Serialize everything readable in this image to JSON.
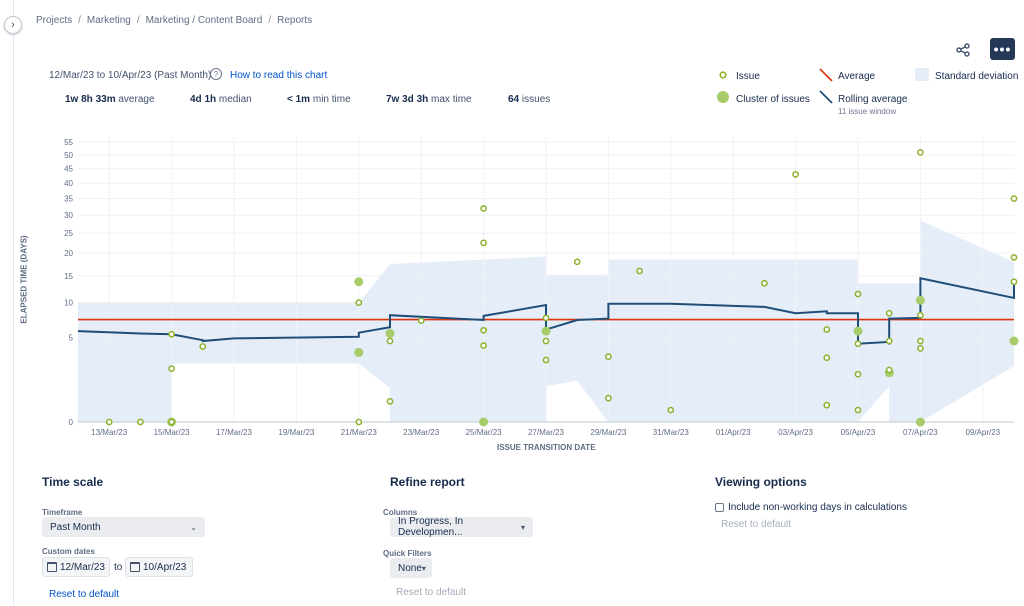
{
  "breadcrumb": [
    "Projects",
    "Marketing",
    "Marketing / Content Board",
    "Reports"
  ],
  "header": {
    "daterange": "12/Mar/23 to 10/Apr/23 (Past Month)",
    "help_link": "How to read this chart"
  },
  "stats": [
    {
      "value": "1w 8h 33m",
      "label": "average"
    },
    {
      "value": "4d 1h",
      "label": "median"
    },
    {
      "value": "< 1m",
      "label": "min time"
    },
    {
      "value": "7w 3d 3h",
      "label": "max time"
    },
    {
      "value": "64",
      "label": "issues"
    }
  ],
  "legend": {
    "issue": "Issue",
    "cluster": "Cluster of issues",
    "average": "Average",
    "rolling": "Rolling average",
    "rolling_sub": "11 issue window",
    "stddev": "Standard deviation"
  },
  "colors": {
    "issue": "#8bb02a",
    "cluster": "#a8cc6a",
    "average": "#de350b",
    "rolling": "#1f4e79",
    "stddev": "#e4edf8",
    "link": "#0052cc",
    "more_button": "#253858"
  },
  "chart_data": {
    "type": "scatter",
    "xlabel": "ISSUE TRANSITION DATE",
    "ylabel": "ELAPSED TIME (DAYS)",
    "x_tick_labels": [
      "13/Mar/23",
      "15/Mar/23",
      "17/Mar/23",
      "19/Mar/23",
      "21/Mar/23",
      "23/Mar/23",
      "25/Mar/23",
      "27/Mar/23",
      "29/Mar/23",
      "31/Mar/23",
      "01/Apr/23",
      "03/Apr/23",
      "05/Apr/23",
      "07/Apr/23",
      "09/Apr/23"
    ],
    "y_tick_labels": [
      "0",
      "5",
      "10",
      "15",
      "20",
      "25",
      "30",
      "35",
      "40",
      "45",
      "50",
      "55"
    ],
    "y_ticks": [
      0,
      5,
      10,
      15,
      20,
      25,
      30,
      35,
      40,
      45,
      50,
      55
    ],
    "y_scale": "sqrt",
    "x_range": [
      "2023-03-12",
      "2023-04-11"
    ],
    "ylim": [
      0,
      55
    ],
    "average_days": 7.36,
    "grid": true,
    "legend_position": "top-right",
    "issues": [
      {
        "x": "2023-03-13",
        "y": 0.0
      },
      {
        "x": "2023-03-14",
        "y": 0.0
      },
      {
        "x": "2023-03-15",
        "y": 5.4
      },
      {
        "x": "2023-03-15",
        "y": 0.0
      },
      {
        "x": "2023-03-15",
        "y": 2.0
      },
      {
        "x": "2023-03-16",
        "y": 4.0
      },
      {
        "x": "2023-03-21",
        "y": 0.0
      },
      {
        "x": "2023-03-21",
        "y": 10.0
      },
      {
        "x": "2023-03-22",
        "y": 0.3
      },
      {
        "x": "2023-03-22",
        "y": 4.6
      },
      {
        "x": "2023-03-23",
        "y": 7.2
      },
      {
        "x": "2023-03-25",
        "y": 32.0
      },
      {
        "x": "2023-03-25",
        "y": 22.5
      },
      {
        "x": "2023-03-25",
        "y": 5.9
      },
      {
        "x": "2023-03-25",
        "y": 4.1
      },
      {
        "x": "2023-03-27",
        "y": 7.6
      },
      {
        "x": "2023-03-27",
        "y": 4.6
      },
      {
        "x": "2023-03-27",
        "y": 2.7
      },
      {
        "x": "2023-03-28",
        "y": 18.0
      },
      {
        "x": "2023-03-29",
        "y": 3.0
      },
      {
        "x": "2023-03-29",
        "y": 0.4
      },
      {
        "x": "2023-03-30",
        "y": 16.0
      },
      {
        "x": "2023-03-31",
        "y": 0.1
      },
      {
        "x": "2023-04-03",
        "y": 13.5
      },
      {
        "x": "2023-04-04",
        "y": 43.0
      },
      {
        "x": "2023-04-05",
        "y": 2.9
      },
      {
        "x": "2023-04-05",
        "y": 6.0
      },
      {
        "x": "2023-04-05",
        "y": 0.2
      },
      {
        "x": "2023-04-06",
        "y": 11.5
      },
      {
        "x": "2023-04-06",
        "y": 1.6
      },
      {
        "x": "2023-04-06",
        "y": 4.3
      },
      {
        "x": "2023-04-06",
        "y": 0.1
      },
      {
        "x": "2023-04-07",
        "y": 8.3
      },
      {
        "x": "2023-04-07",
        "y": 4.6
      },
      {
        "x": "2023-04-07",
        "y": 1.9
      },
      {
        "x": "2023-04-08",
        "y": 51.0
      },
      {
        "x": "2023-04-08",
        "y": 8.0
      },
      {
        "x": "2023-04-08",
        "y": 4.6
      },
      {
        "x": "2023-04-08",
        "y": 3.8
      },
      {
        "x": "2023-04-11",
        "y": 35.0
      },
      {
        "x": "2023-04-11",
        "y": 19.0
      },
      {
        "x": "2023-04-11",
        "y": 13.8
      }
    ],
    "clusters": [
      {
        "x": "2023-03-15",
        "y": 0.0
      },
      {
        "x": "2023-03-21",
        "y": 13.8
      },
      {
        "x": "2023-03-22",
        "y": 5.5
      },
      {
        "x": "2023-03-21",
        "y": 3.4
      },
      {
        "x": "2023-03-25",
        "y": 0.0
      },
      {
        "x": "2023-03-27",
        "y": 5.8
      },
      {
        "x": "2023-04-06",
        "y": 5.8
      },
      {
        "x": "2023-04-07",
        "y": 1.7
      },
      {
        "x": "2023-04-08",
        "y": 10.4
      },
      {
        "x": "2023-04-08",
        "y": 0.0
      },
      {
        "x": "2023-04-11",
        "y": 4.6
      }
    ],
    "rolling_average": [
      {
        "x": "2023-03-12",
        "y": 5.8
      },
      {
        "x": "2023-03-14",
        "y": 5.5
      },
      {
        "x": "2023-03-15",
        "y": 5.4
      },
      {
        "x": "2023-03-16",
        "y": 4.7
      },
      {
        "x": "2023-03-16",
        "y": 4.6
      },
      {
        "x": "2023-03-17",
        "y": 4.9
      },
      {
        "x": "2023-03-21",
        "y": 5.1
      },
      {
        "x": "2023-03-21",
        "y": 5.6
      },
      {
        "x": "2023-03-22",
        "y": 6.3
      },
      {
        "x": "2023-03-22",
        "y": 8.0
      },
      {
        "x": "2023-03-25",
        "y": 7.3
      },
      {
        "x": "2023-03-25",
        "y": 7.9
      },
      {
        "x": "2023-03-27",
        "y": 9.6
      },
      {
        "x": "2023-03-27",
        "y": 6.0
      },
      {
        "x": "2023-03-28",
        "y": 7.3
      },
      {
        "x": "2023-03-29",
        "y": 7.5
      },
      {
        "x": "2023-03-29",
        "y": 9.8
      },
      {
        "x": "2023-03-31",
        "y": 9.8
      },
      {
        "x": "2023-04-03",
        "y": 9.3
      },
      {
        "x": "2023-04-04",
        "y": 8.3
      },
      {
        "x": "2023-04-05",
        "y": 8.6
      },
      {
        "x": "2023-04-05",
        "y": 8.3
      },
      {
        "x": "2023-04-06",
        "y": 8.3
      },
      {
        "x": "2023-04-06",
        "y": 4.3
      },
      {
        "x": "2023-04-07",
        "y": 4.5
      },
      {
        "x": "2023-04-07",
        "y": 4.2
      },
      {
        "x": "2023-04-07",
        "y": 7.5
      },
      {
        "x": "2023-04-08",
        "y": 7.6
      },
      {
        "x": "2023-04-08",
        "y": 8.3
      },
      {
        "x": "2023-04-08",
        "y": 14.5
      },
      {
        "x": "2023-04-11",
        "y": 10.8
      },
      {
        "x": "2023-04-11",
        "y": 14.2
      },
      {
        "x": "2023-04-11",
        "y": 14.2
      }
    ],
    "stddev_upper": [
      {
        "x": "2023-03-12",
        "y": 9.9
      },
      {
        "x": "2023-03-15",
        "y": 9.9
      },
      {
        "x": "2023-03-15",
        "y": 9.9
      },
      {
        "x": "2023-03-21",
        "y": 9.9
      },
      {
        "x": "2023-03-22",
        "y": 17.5
      },
      {
        "x": "2023-03-27",
        "y": 19.2
      },
      {
        "x": "2023-03-27",
        "y": 15.2
      },
      {
        "x": "2023-03-29",
        "y": 15.2
      },
      {
        "x": "2023-03-29",
        "y": 18.5
      },
      {
        "x": "2023-04-06",
        "y": 18.5
      },
      {
        "x": "2023-04-06",
        "y": 13.5
      },
      {
        "x": "2023-04-08",
        "y": 13.5
      },
      {
        "x": "2023-04-08",
        "y": 28.5
      },
      {
        "x": "2023-04-11",
        "y": 18.0
      }
    ],
    "stddev_lower": [
      {
        "x": "2023-03-12",
        "y": 0.0
      },
      {
        "x": "2023-03-15",
        "y": 0.0
      },
      {
        "x": "2023-03-15",
        "y": 2.4
      },
      {
        "x": "2023-03-21",
        "y": 2.4
      },
      {
        "x": "2023-03-22",
        "y": 0.8
      },
      {
        "x": "2023-03-22",
        "y": 0.0
      },
      {
        "x": "2023-03-27",
        "y": 0.0
      },
      {
        "x": "2023-03-27",
        "y": 0.9
      },
      {
        "x": "2023-03-28",
        "y": 1.2
      },
      {
        "x": "2023-03-29",
        "y": 0.0
      },
      {
        "x": "2023-04-06",
        "y": 0.0
      },
      {
        "x": "2023-04-07",
        "y": 0.9
      },
      {
        "x": "2023-04-07",
        "y": 0.0
      },
      {
        "x": "2023-04-08",
        "y": 0.0
      },
      {
        "x": "2023-04-11",
        "y": 2.2
      }
    ]
  },
  "time_scale": {
    "title": "Time scale",
    "timeframe_label": "Timeframe",
    "timeframe_value": "Past Month",
    "custom_label": "Custom dates",
    "from": "12/Mar/23",
    "to_word": "to",
    "to": "10/Apr/23",
    "reset": "Reset to default"
  },
  "refine": {
    "title": "Refine report",
    "columns_label": "Columns",
    "columns_value": "In Progress, In Developmen...",
    "quick_filters_label": "Quick Filters",
    "quick_filters_value": "None",
    "reset": "Reset to default"
  },
  "viewing": {
    "title": "Viewing options",
    "checkbox_label": "Include non-working days in calculations",
    "reset": "Reset to default"
  }
}
